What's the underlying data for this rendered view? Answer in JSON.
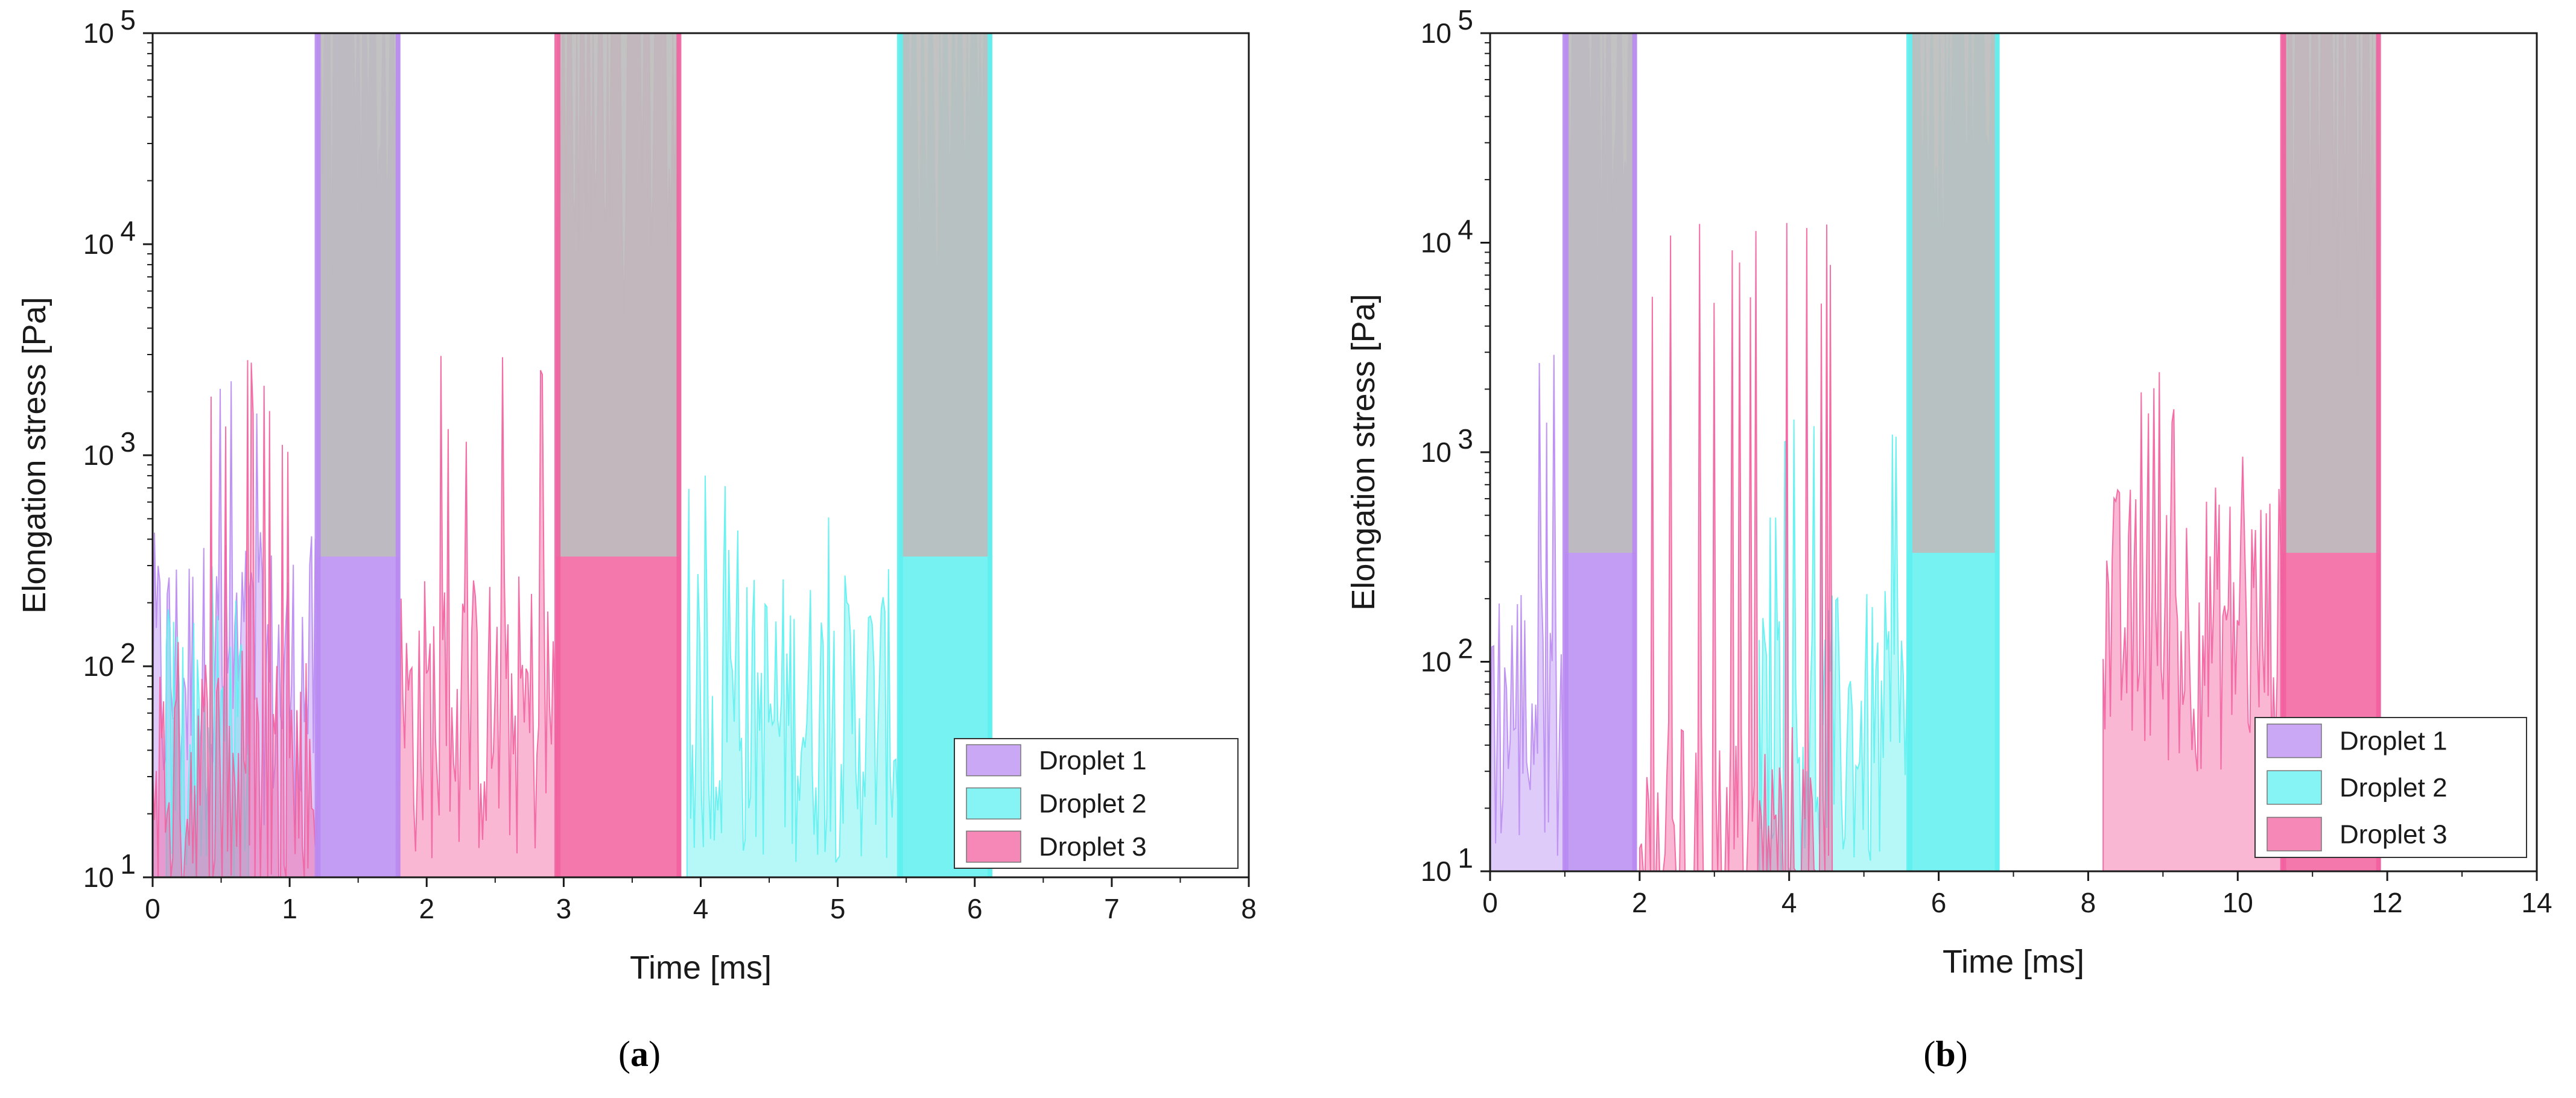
{
  "chart_data": [
    {
      "type": "area",
      "panel_label": {
        "open": "(",
        "letter": "a",
        "close": ")"
      },
      "xlabel": "Time [ms]",
      "ylabel": "Elongation stress [Pa]",
      "yscale": "log",
      "xlim": [
        0,
        8
      ],
      "ylim": [
        10,
        100000
      ],
      "x_ticks": [
        "0",
        "1",
        "2",
        "3",
        "4",
        "5",
        "6",
        "7",
        "8"
      ],
      "y_ticks": [
        {
          "base": "10",
          "exp": "1"
        },
        {
          "base": "10",
          "exp": "2"
        },
        {
          "base": "10",
          "exp": "3"
        },
        {
          "base": "10",
          "exp": "4"
        },
        {
          "base": "10",
          "exp": "5"
        }
      ],
      "legend": {
        "position": "bottom-right",
        "entries": [
          "Droplet 1",
          "Droplet 2",
          "Droplet 3"
        ]
      },
      "colors": {
        "droplet1": "#b98bf2",
        "droplet2": "#5ef0f0",
        "droplet3": "#f2609e",
        "saturated": "#bdbdbd"
      },
      "saturation_bands": [
        {
          "series": "Droplet 1",
          "x0": 1.2,
          "x1": 1.8
        },
        {
          "series": "Droplet 3",
          "x0": 2.95,
          "x1": 3.85
        },
        {
          "series": "Droplet 2",
          "x0": 5.45,
          "x1": 6.12
        }
      ],
      "series": [
        {
          "name": "Droplet 1",
          "segments": [
            {
              "x0": 0.0,
              "x1": 1.2,
              "level": 120,
              "spike": 3000
            },
            {
              "x0": 1.2,
              "x1": 1.8,
              "level": 30000,
              "spike": 100000
            }
          ]
        },
        {
          "name": "Droplet 2",
          "segments": [
            {
              "x0": 0.1,
              "x1": 0.7,
              "level": 60,
              "spike": 300
            },
            {
              "x0": 3.9,
              "x1": 5.45,
              "level": 80,
              "spike": 900
            },
            {
              "x0": 5.45,
              "x1": 6.12,
              "level": 30000,
              "spike": 100000
            }
          ]
        },
        {
          "name": "Droplet 3",
          "segments": [
            {
              "x0": 0.0,
              "x1": 1.2,
              "level": 40,
              "spike": 3000
            },
            {
              "x0": 1.8,
              "x1": 2.95,
              "level": 80,
              "spike": 3500
            },
            {
              "x0": 2.95,
              "x1": 3.85,
              "level": 20000,
              "spike": 100000
            }
          ]
        }
      ]
    },
    {
      "type": "area",
      "panel_label": {
        "open": "(",
        "letter": "b",
        "close": ")"
      },
      "xlabel": "Time [ms]",
      "ylabel": "Elongation stress [Pa]",
      "yscale": "log",
      "xlim": [
        0,
        14
      ],
      "ylim": [
        10,
        100000
      ],
      "x_ticks": [
        "0",
        "2",
        "4",
        "6",
        "8",
        "10",
        "12",
        "14"
      ],
      "y_ticks": [
        {
          "base": "10",
          "exp": "1"
        },
        {
          "base": "10",
          "exp": "2"
        },
        {
          "base": "10",
          "exp": "3"
        },
        {
          "base": "10",
          "exp": "4"
        },
        {
          "base": "10",
          "exp": "5"
        }
      ],
      "legend": {
        "position": "bottom-right",
        "entries": [
          "Droplet 1",
          "Droplet 2",
          "Droplet 3"
        ]
      },
      "colors": {
        "droplet1": "#b98bf2",
        "droplet2": "#5ef0f0",
        "droplet3": "#f2609e",
        "saturated": "#bdbdbd"
      },
      "saturation_bands": [
        {
          "series": "Droplet 1",
          "x0": 1.0,
          "x1": 1.95
        },
        {
          "series": "Droplet 2",
          "x0": 5.6,
          "x1": 6.8
        },
        {
          "series": "Droplet 3",
          "x0": 10.6,
          "x1": 11.9
        }
      ],
      "series": [
        {
          "name": "Droplet 1",
          "segments": [
            {
              "x0": 0.0,
              "x1": 1.0,
              "level": 80,
              "spike": 4000
            },
            {
              "x0": 1.0,
              "x1": 1.95,
              "level": 30000,
              "spike": 100000
            }
          ]
        },
        {
          "name": "Droplet 2",
          "segments": [
            {
              "x0": 3.6,
              "x1": 5.6,
              "level": 60,
              "spike": 1500
            },
            {
              "x0": 5.6,
              "x1": 6.8,
              "level": 30000,
              "spike": 100000
            }
          ]
        },
        {
          "name": "Droplet 3",
          "segments": [
            {
              "x0": 2.0,
              "x1": 4.6,
              "level": 15,
              "spike": 13000
            },
            {
              "x0": 8.2,
              "x1": 10.6,
              "level": 200,
              "spike": 2500
            },
            {
              "x0": 10.6,
              "x1": 11.9,
              "level": 10000,
              "spike": 100000
            }
          ]
        }
      ]
    }
  ]
}
